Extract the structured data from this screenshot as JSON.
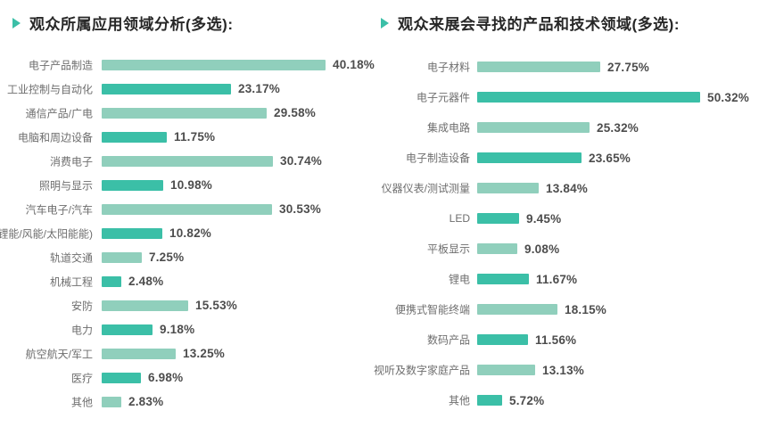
{
  "colors": {
    "bar_light": "#90CFBC",
    "bar_dark": "#3BBFA7",
    "marker": "#3BBFA7",
    "title_text": "#272727",
    "category_text": "#6E6E6E",
    "value_text": "#4D4D4D",
    "background": "#FFFFFF"
  },
  "chart_data": [
    {
      "type": "bar",
      "orientation": "horizontal",
      "title": "观众所属应用领域分析(多选):",
      "marker_icon": "triangle-right-icon",
      "categories": [
        "电子产品制造",
        "工业控制与自动化",
        "通信产品/广电",
        "电脑和周边设备",
        "消费电子",
        "照明与显示",
        "汽车电子/汽车",
        "新能源(锂能/风能/太阳能能)",
        "轨道交通",
        "机械工程",
        "安防",
        "电力",
        "航空航天/军工",
        "医疗",
        "其他"
      ],
      "values": [
        40.18,
        23.17,
        29.58,
        11.75,
        30.74,
        10.98,
        30.53,
        10.82,
        7.25,
        2.48,
        15.53,
        9.18,
        13.25,
        6.98,
        2.83
      ],
      "value_labels": [
        "40.18%",
        "23.17%",
        "29.58%",
        "11.75%",
        "30.74%",
        "10.98%",
        "30.53%",
        "10.82%",
        "7.25%",
        "2.48%",
        "15.53%",
        "9.18%",
        "13.25%",
        "6.98%",
        "2.83%"
      ],
      "xlim": [
        0,
        40.18
      ],
      "grid": false,
      "value_label_position": "end-of-bar",
      "bar_palette_alternating": [
        "#90CFBC",
        "#3BBFA7"
      ]
    },
    {
      "type": "bar",
      "orientation": "horizontal",
      "title": "观众来展会寻找的产品和技术领域(多选):",
      "marker_icon": "triangle-right-icon",
      "categories": [
        "电子材料",
        "电子元器件",
        "集成电路",
        "电子制造设备",
        "仪器仪表/测试测量",
        "LED",
        "平板显示",
        "锂电",
        "便携式智能终端",
        "数码产品",
        "视听及数字家庭产品",
        "其他"
      ],
      "values": [
        27.75,
        50.32,
        25.32,
        23.65,
        13.84,
        9.45,
        9.08,
        11.67,
        18.15,
        11.56,
        13.13,
        5.72
      ],
      "value_labels": [
        "27.75%",
        "50.32%",
        "25.32%",
        "23.65%",
        "13.84%",
        "9.45%",
        "9.08%",
        "11.67%",
        "18.15%",
        "11.56%",
        "13.13%",
        "5.72%"
      ],
      "xlim": [
        0,
        50.32
      ],
      "grid": false,
      "value_label_position": "end-of-bar",
      "bar_palette_alternating": [
        "#90CFBC",
        "#3BBFA7"
      ]
    }
  ]
}
